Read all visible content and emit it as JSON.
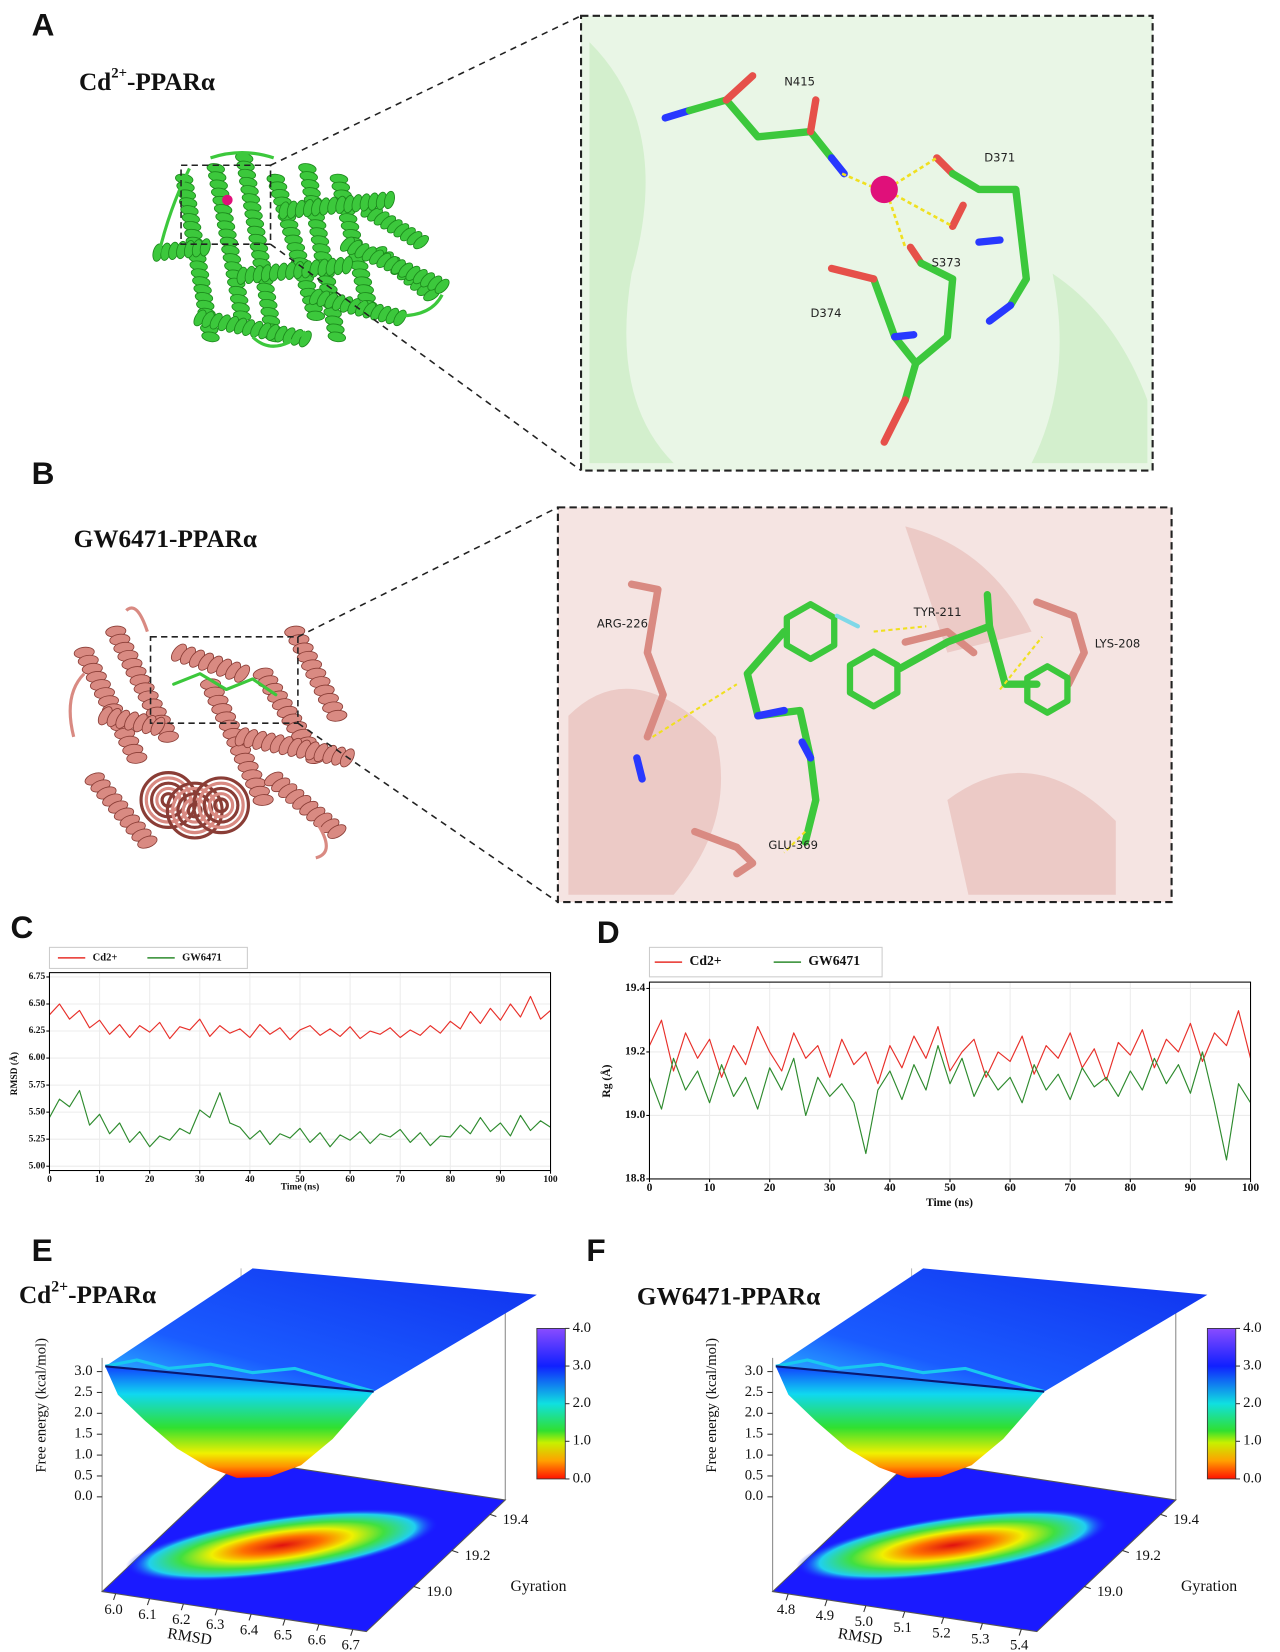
{
  "panels": [
    {
      "label": "A",
      "title": {
        "base": "Cd",
        "sup": "2+",
        "rest": "-PPARα"
      },
      "residues": [
        "N415",
        "D371",
        "S373",
        "D374"
      ]
    },
    {
      "label": "B",
      "title": "GW6471-PPARα",
      "residues": [
        "ARG-226",
        "TYR-211",
        "LYS-208",
        "GLU-369"
      ]
    }
  ],
  "chart_data": [
    {
      "label": "C",
      "type": "line",
      "xlabel": "Time (ns)",
      "ylabel": "RMSD (Å)",
      "grid": true,
      "xlim": [
        0,
        100
      ],
      "xticks": [
        0,
        10,
        20,
        30,
        40,
        50,
        60,
        70,
        80,
        90,
        100
      ],
      "ylim": [
        4.96,
        6.79
      ],
      "yticks": [
        {
          "value": 5,
          "label": "5.00"
        },
        5.25,
        {
          "value": 5.5,
          "label": "5.50"
        },
        5.75,
        {
          "value": 6,
          "label": "6.00"
        },
        6.25,
        {
          "value": 6.5,
          "label": "6.50"
        },
        6.75
      ],
      "x": [
        0,
        2,
        4,
        6,
        8,
        10,
        12,
        14,
        16,
        18,
        20,
        22,
        24,
        26,
        28,
        30,
        32,
        34,
        36,
        38,
        40,
        42,
        44,
        46,
        48,
        50,
        52,
        54,
        56,
        58,
        60,
        62,
        64,
        66,
        68,
        70,
        72,
        74,
        76,
        78,
        80,
        82,
        84,
        86,
        88,
        90,
        92,
        94,
        96,
        98,
        100
      ],
      "series": [
        {
          "name": "Cd2+",
          "color": "#e8302a",
          "values": [
            6.4,
            6.5,
            6.36,
            6.44,
            6.28,
            6.35,
            6.22,
            6.31,
            6.19,
            6.3,
            6.24,
            6.33,
            6.18,
            6.29,
            6.26,
            6.36,
            6.2,
            6.3,
            6.23,
            6.27,
            6.19,
            6.31,
            6.22,
            6.28,
            6.17,
            6.26,
            6.3,
            6.21,
            6.27,
            6.2,
            6.29,
            6.18,
            6.25,
            6.22,
            6.28,
            6.19,
            6.26,
            6.21,
            6.3,
            6.23,
            6.34,
            6.27,
            6.43,
            6.32,
            6.46,
            6.35,
            6.5,
            6.38,
            6.57,
            6.36,
            6.44
          ]
        },
        {
          "name": "GW6471",
          "color": "#2e8b2e",
          "values": [
            5.45,
            5.62,
            5.55,
            5.7,
            5.38,
            5.48,
            5.3,
            5.4,
            5.22,
            5.32,
            5.18,
            5.28,
            5.24,
            5.35,
            5.3,
            5.52,
            5.45,
            5.68,
            5.4,
            5.36,
            5.25,
            5.33,
            5.2,
            5.3,
            5.26,
            5.35,
            5.22,
            5.31,
            5.18,
            5.29,
            5.24,
            5.32,
            5.21,
            5.3,
            5.27,
            5.34,
            5.22,
            5.31,
            5.19,
            5.28,
            5.27,
            5.38,
            5.3,
            5.45,
            5.32,
            5.4,
            5.28,
            5.47,
            5.33,
            5.42,
            5.36
          ]
        }
      ]
    },
    {
      "label": "D",
      "type": "line",
      "xlabel": "Time (ns)",
      "ylabel": "Rg (Å)",
      "grid": true,
      "xlim": [
        0,
        100
      ],
      "xticks": [
        0,
        10,
        20,
        30,
        40,
        50,
        60,
        70,
        80,
        90,
        100
      ],
      "ylim": [
        18.8,
        19.42
      ],
      "yticks": [
        18.8,
        {
          "value": 19,
          "label": "19.0"
        },
        19.2,
        19.4
      ],
      "x": [
        0,
        2,
        4,
        6,
        8,
        10,
        12,
        14,
        16,
        18,
        20,
        22,
        24,
        26,
        28,
        30,
        32,
        34,
        36,
        38,
        40,
        42,
        44,
        46,
        48,
        50,
        52,
        54,
        56,
        58,
        60,
        62,
        64,
        66,
        68,
        70,
        72,
        74,
        76,
        78,
        80,
        82,
        84,
        86,
        88,
        90,
        92,
        94,
        96,
        98,
        100
      ],
      "series": [
        {
          "name": "Cd2+",
          "color": "#e8302a",
          "values": [
            19.22,
            19.3,
            19.14,
            19.26,
            19.18,
            19.24,
            19.12,
            19.22,
            19.16,
            19.28,
            19.2,
            19.14,
            19.26,
            19.18,
            19.22,
            19.12,
            19.24,
            19.16,
            19.2,
            19.1,
            19.22,
            19.15,
            19.25,
            19.18,
            19.28,
            19.14,
            19.2,
            19.24,
            19.12,
            19.2,
            19.17,
            19.25,
            19.13,
            19.22,
            19.18,
            19.26,
            19.15,
            19.21,
            19.11,
            19.23,
            19.19,
            19.27,
            19.15,
            19.24,
            19.2,
            19.29,
            19.17,
            19.26,
            19.22,
            19.33,
            19.18
          ]
        },
        {
          "name": "GW6471",
          "color": "#2e8b2e",
          "values": [
            19.12,
            19.02,
            19.18,
            19.08,
            19.14,
            19.04,
            19.16,
            19.06,
            19.12,
            19.02,
            19.15,
            19.08,
            19.18,
            19.0,
            19.12,
            19.06,
            19.1,
            19.04,
            18.88,
            19.08,
            19.14,
            19.05,
            19.16,
            19.08,
            19.22,
            19.1,
            19.18,
            19.06,
            19.14,
            19.08,
            19.12,
            19.04,
            19.16,
            19.08,
            19.13,
            19.05,
            19.15,
            19.09,
            19.12,
            19.06,
            19.14,
            19.08,
            19.18,
            19.1,
            19.16,
            19.07,
            19.2,
            19.04,
            18.86,
            19.1,
            19.04
          ]
        }
      ]
    },
    {
      "label": "E",
      "type": "surface",
      "title": {
        "base": "Cd",
        "sup": "2+",
        "rest": "-PPARα"
      },
      "xlabel": "RMSD",
      "ylabel": "Gyration",
      "zlabel": "Free energy (kcal/mol)",
      "xlim": [
        5.96,
        6.74
      ],
      "xticks": [
        {
          "value": 6,
          "label": "6.0"
        },
        6.1,
        6.2,
        6.3,
        6.4,
        6.5,
        6.6,
        6.7
      ],
      "ylim": [
        18.75,
        19.48
      ],
      "yticks": [
        {
          "value": 19,
          "label": "19.0"
        },
        19.2,
        19.4
      ],
      "zlim": [
        0,
        3
      ],
      "zticks": [
        {
          "value": 0,
          "label": "0.0"
        },
        0.5,
        {
          "value": 1,
          "label": "1.0"
        },
        1.5,
        {
          "value": 2,
          "label": "2.0"
        },
        2.5,
        {
          "value": 3,
          "label": "3.0"
        }
      ],
      "clim": [
        0,
        4
      ],
      "cticks": [
        {
          "value": 0,
          "label": "0.0"
        },
        {
          "value": 1,
          "label": "1.0"
        },
        {
          "value": 2,
          "label": "2.0"
        },
        {
          "value": 3,
          "label": "3.0"
        },
        {
          "value": 4,
          "label": "4.0"
        }
      ]
    },
    {
      "label": "F",
      "type": "surface",
      "title": "GW6471-PPARα",
      "xlabel": "RMSD",
      "ylabel": "Gyration",
      "zlabel": "Free energy (kcal/mol)",
      "xlim": [
        4.76,
        5.44
      ],
      "xticks": [
        4.8,
        4.9,
        {
          "value": 5,
          "label": "5.0"
        },
        5.1,
        5.2,
        5.3,
        5.4
      ],
      "ylim": [
        18.75,
        19.48
      ],
      "yticks": [
        {
          "value": 19,
          "label": "19.0"
        },
        19.2,
        19.4
      ],
      "zlim": [
        0,
        3
      ],
      "zticks": [
        {
          "value": 0,
          "label": "0.0"
        },
        0.5,
        {
          "value": 1,
          "label": "1.0"
        },
        1.5,
        {
          "value": 2,
          "label": "2.0"
        },
        2.5,
        {
          "value": 3,
          "label": "3.0"
        }
      ],
      "clim": [
        0,
        4
      ],
      "cticks": [
        {
          "value": 0,
          "label": "0.0"
        },
        {
          "value": 1,
          "label": "1.0"
        },
        {
          "value": 2,
          "label": "2.0"
        },
        {
          "value": 3,
          "label": "3.0"
        },
        {
          "value": 4,
          "label": "4.0"
        }
      ]
    }
  ]
}
